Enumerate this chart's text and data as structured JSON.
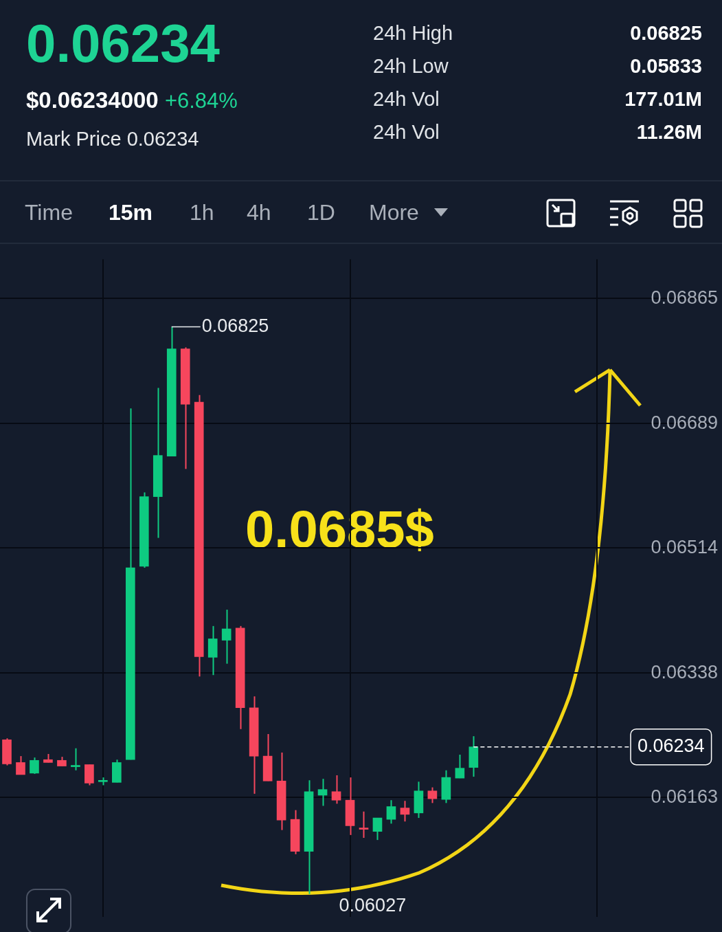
{
  "chart_data": {
    "type": "candlestick",
    "title": "0.06234",
    "categories": [
      null,
      null,
      null,
      null,
      null,
      null,
      null,
      null,
      null,
      null,
      null,
      null,
      null,
      null,
      null,
      null,
      null,
      null,
      null,
      null,
      null,
      null,
      null,
      null,
      null,
      null,
      null,
      null,
      null,
      null,
      null,
      null,
      null,
      null,
      null,
      null,
      null,
      null,
      null,
      null,
      null,
      null,
      null,
      null,
      null,
      null,
      null,
      null,
      null,
      null,
      null,
      null
    ],
    "ohlc": [
      [
        0.06244,
        0.06246,
        0.06208,
        0.0621
      ],
      [
        0.06212,
        0.06221,
        0.06195,
        0.06195
      ],
      [
        0.06197,
        0.06219,
        0.06196,
        0.06215
      ],
      [
        0.06216,
        0.06224,
        0.06212,
        0.06212
      ],
      [
        0.06215,
        0.0622,
        0.06207,
        0.06207
      ],
      [
        0.06206,
        0.06232,
        0.06201,
        0.06208
      ],
      [
        0.06209,
        0.06209,
        0.0618,
        0.06183
      ],
      [
        0.06185,
        0.06191,
        0.0618,
        0.06186
      ],
      [
        0.06184,
        0.06216,
        0.06184,
        0.06212
      ],
      [
        0.06216,
        0.0671,
        0.06216,
        0.06486
      ],
      [
        0.06488,
        0.06592,
        0.06486,
        0.06586
      ],
      [
        0.06586,
        0.06739,
        0.06528,
        0.06644
      ],
      [
        0.06643,
        0.06825,
        0.06643,
        0.06794
      ],
      [
        0.06794,
        0.06796,
        0.06625,
        0.06716
      ],
      [
        0.06719,
        0.06729,
        0.06333,
        0.06361
      ],
      [
        0.0636,
        0.06404,
        0.06335,
        0.06386
      ],
      [
        0.06384,
        0.06427,
        0.06351,
        0.064
      ],
      [
        0.06401,
        0.06404,
        0.06259,
        0.06289
      ],
      [
        0.06289,
        0.06305,
        0.06168,
        0.06221
      ],
      [
        0.06221,
        0.06252,
        0.06186,
        0.06186
      ],
      [
        0.06186,
        0.06226,
        0.06117,
        0.06131
      ],
      [
        0.06132,
        0.06145,
        0.06083,
        0.06087
      ],
      [
        0.06087,
        0.06187,
        0.06027,
        0.06171
      ],
      [
        0.06166,
        0.06189,
        0.06151,
        0.06174
      ],
      [
        0.06171,
        0.06194,
        0.06154,
        0.06159
      ],
      [
        0.06159,
        0.06191,
        0.0611,
        0.06123
      ],
      [
        0.06119,
        0.06143,
        0.06106,
        0.06118
      ],
      [
        0.06115,
        0.06134,
        0.06103,
        0.06134
      ],
      [
        0.06132,
        0.06159,
        0.06126,
        0.0615
      ],
      [
        0.06148,
        0.06158,
        0.06129,
        0.06139
      ],
      [
        0.06141,
        0.06185,
        0.06134,
        0.06172
      ],
      [
        0.06172,
        0.06177,
        0.06155,
        0.06161
      ],
      [
        0.0616,
        0.06201,
        0.06155,
        0.06191
      ],
      [
        0.0619,
        0.06223,
        0.0619,
        0.06204
      ],
      [
        0.06205,
        0.06249,
        0.06192,
        0.06234
      ],
      null,
      null,
      null,
      null,
      null,
      null,
      null,
      null,
      null,
      null,
      null,
      null,
      null,
      null,
      null,
      null,
      null
    ],
    "colors": [
      "#f6465d",
      "#f6465d",
      "#0ecb81",
      "#f6465d",
      "#f6465d",
      "#0ecb81",
      "#f6465d",
      "#0ecb81",
      "#0ecb81",
      "#0ecb81",
      "#0ecb81",
      "#0ecb81",
      "#0ecb81",
      "#f6465d",
      "#f6465d",
      "#0ecb81",
      "#0ecb81",
      "#f6465d",
      "#f6465d",
      "#f6465d",
      "#f6465d",
      "#f6465d",
      "#0ecb81",
      "#0ecb81",
      "#f6465d",
      "#f6465d",
      "#f6465d",
      "#0ecb81",
      "#0ecb81",
      "#f6465d",
      "#0ecb81",
      "#f6465d",
      "#0ecb81",
      "#0ecb81",
      "#0ecb81",
      null,
      null,
      null,
      null,
      null,
      null,
      null,
      null,
      null,
      null,
      null,
      null,
      null,
      null,
      null,
      null,
      null
    ],
    "ylim": [
      0.05995,
      0.0692
    ],
    "yticks": [
      0.06865,
      0.06689,
      0.06514,
      0.06338,
      0.06163
    ],
    "tick_labels": "y",
    "grid": true,
    "ref_lines": [
      {
        "axis": "y",
        "value": 0.06234,
        "label": "0.06234",
        "color": "#ffffff",
        "line_style": "dashed"
      }
    ],
    "annotations": [
      "$0.06234000",
      "+6.84%",
      "Mark Price 0.06234",
      "24h High",
      "0.06825",
      "24h Low",
      "0.05833",
      "24h Vol",
      "177.01M",
      "24h Vol",
      "11.26M",
      "Time",
      "15m",
      "1h",
      "4h",
      "1D",
      "More",
      "0.0685$",
      "0.06825",
      "0.06027"
    ]
  }
}
